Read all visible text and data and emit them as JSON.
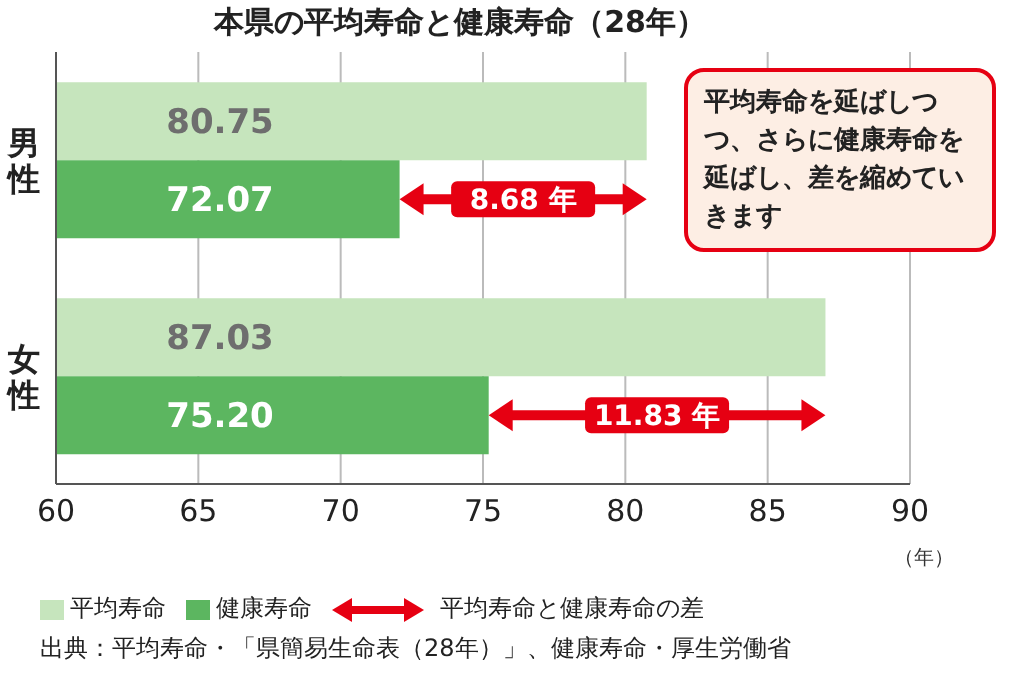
{
  "chart_data": {
    "type": "bar",
    "orientation": "horizontal",
    "title": "本県の平均寿命と健康寿命（28年）",
    "xlabel": "（年）",
    "categories": [
      "男性",
      "女性"
    ],
    "series": [
      {
        "name": "平均寿命",
        "color": "#c6e5bd",
        "values": [
          80.75,
          87.03
        ]
      },
      {
        "name": "健康寿命",
        "color": "#5cb660",
        "values": [
          72.07,
          75.2
        ],
        "value_labels": [
          "72.07",
          "75.20"
        ]
      }
    ],
    "xlim": [
      60,
      90
    ],
    "xticks": [
      60,
      65,
      70,
      75,
      80,
      85,
      90
    ],
    "grid": "x",
    "legend": "bottom",
    "data_labels": true,
    "annotations": [
      "平均寿命を延ばしつつ、さらに健康寿命を延ばし、差を縮めていきます",
      {
        "text": "8.68 年",
        "y": "男性"
      },
      {
        "text": "11.83 年",
        "y": "女性"
      },
      "平均寿命と健康寿命の差",
      "出典：平均寿命・「県簡易生命表（28年）」、健康寿命・厚生労働省"
    ]
  }
}
